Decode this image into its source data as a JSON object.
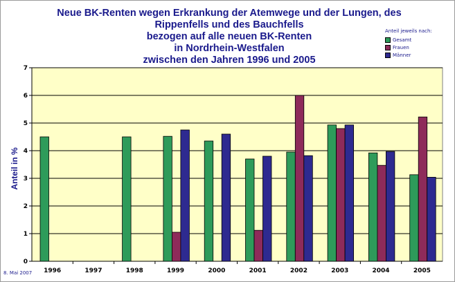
{
  "chart_data": {
    "type": "bar",
    "title_lines": [
      "Neue BK-Renten wegen Erkrankung der Atemwege und der Lungen, des",
      "Rippenfells und des Bauchfells",
      "bezogen auf alle neuen BK-Renten",
      "in Nordrhein-Westfalen",
      "zwischen den Jahren 1996 und 2005"
    ],
    "ylabel": "Anteil in %",
    "ylim": [
      0,
      7
    ],
    "yticks": [
      0,
      1,
      2,
      3,
      4,
      5,
      6,
      7
    ],
    "grid": true,
    "categories": [
      "1996",
      "1997",
      "1998",
      "1999",
      "2000",
      "2001",
      "2002",
      "2003",
      "2004",
      "2005"
    ],
    "legend": {
      "title": "Anteil jeweils nach:",
      "placement": "top-right"
    },
    "series": [
      {
        "name": "Gesamt",
        "color": "#2e9b5a",
        "values": [
          4.5,
          null,
          4.5,
          4.52,
          4.35,
          3.7,
          3.95,
          4.93,
          3.92,
          3.13
        ]
      },
      {
        "name": "Frauen",
        "color": "#8e2b5a",
        "values": [
          null,
          null,
          null,
          1.05,
          null,
          1.12,
          6.0,
          4.8,
          3.47,
          5.22
        ]
      },
      {
        "name": "Männer",
        "color": "#2e2a90",
        "values": [
          null,
          null,
          null,
          4.75,
          4.6,
          3.8,
          3.82,
          4.93,
          3.97,
          3.04
        ]
      }
    ]
  },
  "footer": {
    "date": "8. Mai 2007"
  }
}
